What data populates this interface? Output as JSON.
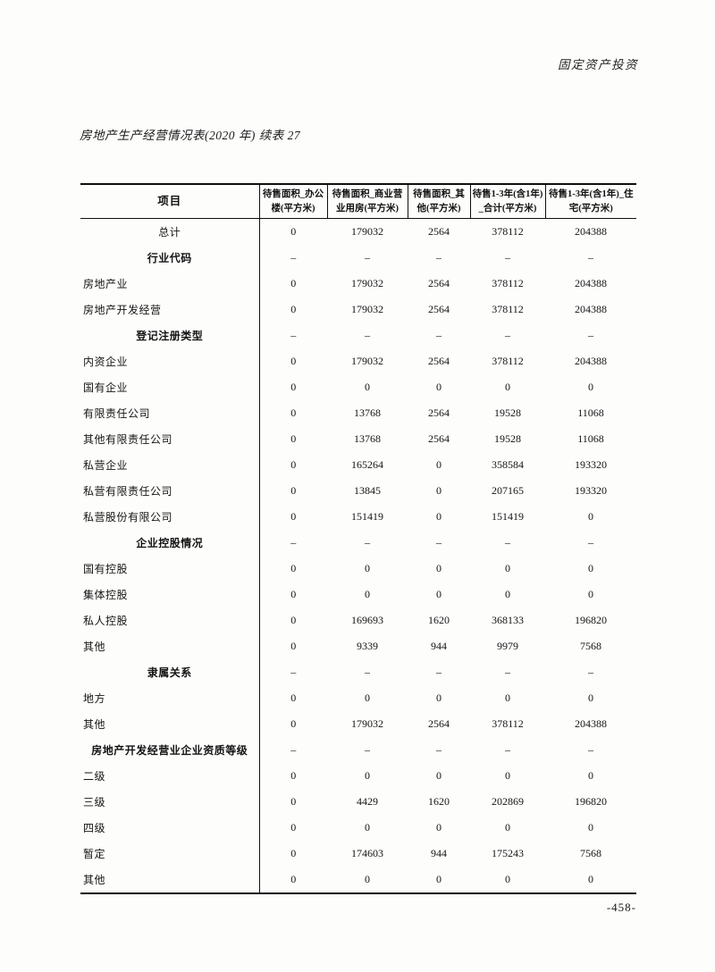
{
  "page": {
    "category_header": "固定资产投资",
    "title": "房地产生产经营情况表(2020 年) 续表 27",
    "page_number": "-458-"
  },
  "table": {
    "item_column_header": "项目",
    "value_column_headers": [
      "待售面积_办公楼(平方米)",
      "待售面积_商业营业用房(平方米)",
      "待售面积_其他(平方米)",
      "待售1-3年(含1年)_合计(平方米)",
      "待售1-3年(含1年)_住宅(平方米)"
    ],
    "rows": [
      {
        "label": "总计",
        "type": "total",
        "values": [
          "0",
          "179032",
          "2564",
          "378112",
          "204388"
        ]
      },
      {
        "label": "行业代码",
        "type": "section",
        "values": [
          "–",
          "–",
          "–",
          "–",
          "–"
        ]
      },
      {
        "label": "房地产业",
        "type": "data",
        "values": [
          "0",
          "179032",
          "2564",
          "378112",
          "204388"
        ]
      },
      {
        "label": "房地产开发经营",
        "type": "data",
        "values": [
          "0",
          "179032",
          "2564",
          "378112",
          "204388"
        ]
      },
      {
        "label": "登记注册类型",
        "type": "section",
        "values": [
          "–",
          "–",
          "–",
          "–",
          "–"
        ]
      },
      {
        "label": "内资企业",
        "type": "data",
        "values": [
          "0",
          "179032",
          "2564",
          "378112",
          "204388"
        ]
      },
      {
        "label": "国有企业",
        "type": "data",
        "values": [
          "0",
          "0",
          "0",
          "0",
          "0"
        ]
      },
      {
        "label": "有限责任公司",
        "type": "data",
        "values": [
          "0",
          "13768",
          "2564",
          "19528",
          "11068"
        ]
      },
      {
        "label": "其他有限责任公司",
        "type": "data",
        "values": [
          "0",
          "13768",
          "2564",
          "19528",
          "11068"
        ]
      },
      {
        "label": "私营企业",
        "type": "data",
        "values": [
          "0",
          "165264",
          "0",
          "358584",
          "193320"
        ]
      },
      {
        "label": "私营有限责任公司",
        "type": "data",
        "values": [
          "0",
          "13845",
          "0",
          "207165",
          "193320"
        ]
      },
      {
        "label": "私营股份有限公司",
        "type": "data",
        "values": [
          "0",
          "151419",
          "0",
          "151419",
          "0"
        ]
      },
      {
        "label": "企业控股情况",
        "type": "section",
        "values": [
          "–",
          "–",
          "–",
          "–",
          "–"
        ]
      },
      {
        "label": "国有控股",
        "type": "data",
        "values": [
          "0",
          "0",
          "0",
          "0",
          "0"
        ]
      },
      {
        "label": "集体控股",
        "type": "data",
        "values": [
          "0",
          "0",
          "0",
          "0",
          "0"
        ]
      },
      {
        "label": "私人控股",
        "type": "data",
        "values": [
          "0",
          "169693",
          "1620",
          "368133",
          "196820"
        ]
      },
      {
        "label": "其他",
        "type": "data",
        "values": [
          "0",
          "9339",
          "944",
          "9979",
          "7568"
        ]
      },
      {
        "label": "隶属关系",
        "type": "section",
        "values": [
          "–",
          "–",
          "–",
          "–",
          "–"
        ]
      },
      {
        "label": "地方",
        "type": "data",
        "values": [
          "0",
          "0",
          "0",
          "0",
          "0"
        ]
      },
      {
        "label": "其他",
        "type": "data",
        "values": [
          "0",
          "179032",
          "2564",
          "378112",
          "204388"
        ]
      },
      {
        "label": "房地产开发经营业企业资质等级",
        "type": "section",
        "values": [
          "–",
          "–",
          "–",
          "–",
          "–"
        ]
      },
      {
        "label": "二级",
        "type": "data",
        "values": [
          "0",
          "0",
          "0",
          "0",
          "0"
        ]
      },
      {
        "label": "三级",
        "type": "data",
        "values": [
          "0",
          "4429",
          "1620",
          "202869",
          "196820"
        ]
      },
      {
        "label": "四级",
        "type": "data",
        "values": [
          "0",
          "0",
          "0",
          "0",
          "0"
        ]
      },
      {
        "label": "暂定",
        "type": "data",
        "values": [
          "0",
          "174603",
          "944",
          "175243",
          "7568"
        ]
      },
      {
        "label": "其他",
        "type": "data",
        "values": [
          "0",
          "0",
          "0",
          "0",
          "0"
        ]
      }
    ]
  }
}
